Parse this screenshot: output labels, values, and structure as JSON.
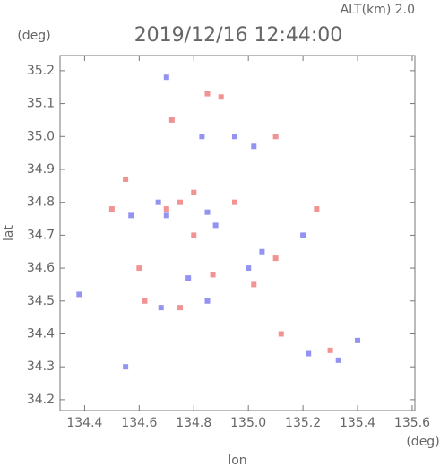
{
  "chart_data": {
    "type": "scatter",
    "title": "2019/12/16 12:44:00",
    "subtitle": "ALT(km) 2.0",
    "x_label": "lon",
    "y_label": "lat",
    "x_unit": "(deg)",
    "y_unit": "(deg)",
    "xlim": [
      134.31,
      135.61
    ],
    "ylim": [
      34.167,
      35.246
    ],
    "xticks": [
      134.4,
      134.6,
      134.8,
      {
        "value": 135.0,
        "label": "135.0"
      },
      135.2,
      135.4,
      135.6
    ],
    "yticks": [
      34.2,
      34.3,
      34.4,
      34.5,
      34.6,
      34.7,
      34.8,
      34.9,
      {
        "value": 35.0,
        "label": "35.0"
      },
      35.1,
      35.2
    ],
    "series": [
      {
        "color": "#f08080",
        "x": [
          134.72,
          134.85,
          134.9,
          135.1,
          134.55,
          134.8,
          134.75,
          134.7,
          135.25,
          134.8,
          134.6,
          134.87,
          135.1,
          134.62,
          134.75,
          135.12,
          135.3,
          135.02,
          134.95,
          134.5
        ],
        "values": [
          35.05,
          35.13,
          35.12,
          35.0,
          34.87,
          34.83,
          34.8,
          34.78,
          34.78,
          34.7,
          34.6,
          34.58,
          34.63,
          34.5,
          34.48,
          34.4,
          34.35,
          34.55,
          34.8,
          34.78
        ]
      },
      {
        "color": "#8080f0",
        "x": [
          134.7,
          134.83,
          134.95,
          135.02,
          134.67,
          134.85,
          134.88,
          134.7,
          135.2,
          134.57,
          134.78,
          134.68,
          134.85,
          135.0,
          135.05,
          135.22,
          135.33,
          135.4,
          134.38,
          134.55
        ],
        "values": [
          35.18,
          35.0,
          35.0,
          34.97,
          34.8,
          34.77,
          34.73,
          34.76,
          34.7,
          34.76,
          34.57,
          34.48,
          34.5,
          34.6,
          34.65,
          34.34,
          34.32,
          34.38,
          34.52,
          34.3
        ]
      }
    ]
  }
}
